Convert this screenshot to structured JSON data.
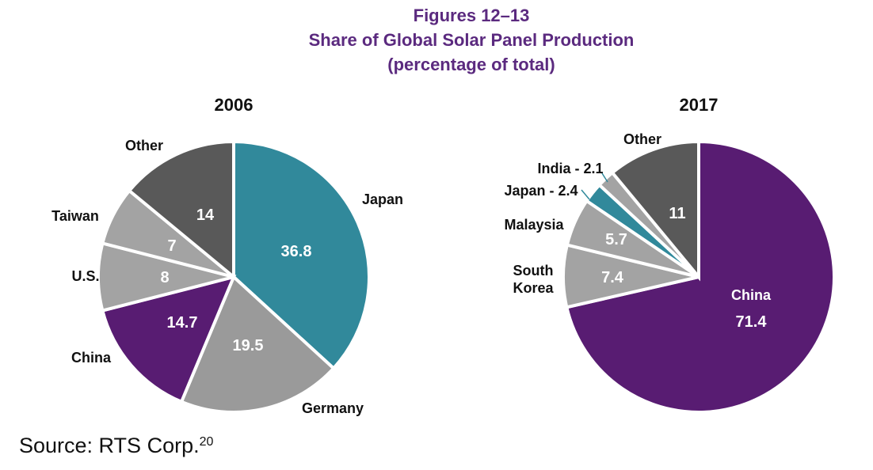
{
  "header": {
    "line1": "Figures 12–13",
    "line2": "Share of Global Solar Panel Production",
    "line3": "(percentage of total)"
  },
  "colors": {
    "title": "#5b2a7f",
    "japan": "#31899b",
    "germany": "#9a9a9a",
    "china": "#581c72",
    "gray": "#a3a3a3",
    "other": "#595959"
  },
  "chart_data": [
    {
      "type": "pie",
      "title": "2006",
      "slices": [
        {
          "label": "Japan",
          "value": 36.8,
          "value_text": "36.8",
          "color": "#31899b"
        },
        {
          "label": "Germany",
          "value": 19.5,
          "value_text": "19.5",
          "color": "#9a9a9a"
        },
        {
          "label": "China",
          "value": 14.7,
          "value_text": "14.7",
          "color": "#581c72"
        },
        {
          "label": "U.S.",
          "value": 8,
          "value_text": "8",
          "color": "#a3a3a3"
        },
        {
          "label": "Taiwan",
          "value": 7,
          "value_text": "7",
          "color": "#a3a3a3"
        },
        {
          "label": "Other",
          "value": 14,
          "value_text": "14",
          "color": "#595959"
        }
      ]
    },
    {
      "type": "pie",
      "title": "2017",
      "slices": [
        {
          "label": "China",
          "value": 71.4,
          "value_text": "71.4",
          "color": "#581c72"
        },
        {
          "label": "South Korea",
          "value": 7.4,
          "value_text": "7.4",
          "color": "#a3a3a3"
        },
        {
          "label": "Malaysia",
          "value": 5.7,
          "value_text": "5.7",
          "color": "#a3a3a3"
        },
        {
          "label": "Japan - 2.4",
          "value": 2.4,
          "value_text": "",
          "color": "#31899b"
        },
        {
          "label": "India - 2.1",
          "value": 2.1,
          "value_text": "",
          "color": "#a3a3a3"
        },
        {
          "label": "Other",
          "value": 11,
          "value_text": "11",
          "color": "#595959"
        }
      ]
    }
  ],
  "source": {
    "text": "Source: RTS Corp.",
    "note": "20"
  }
}
